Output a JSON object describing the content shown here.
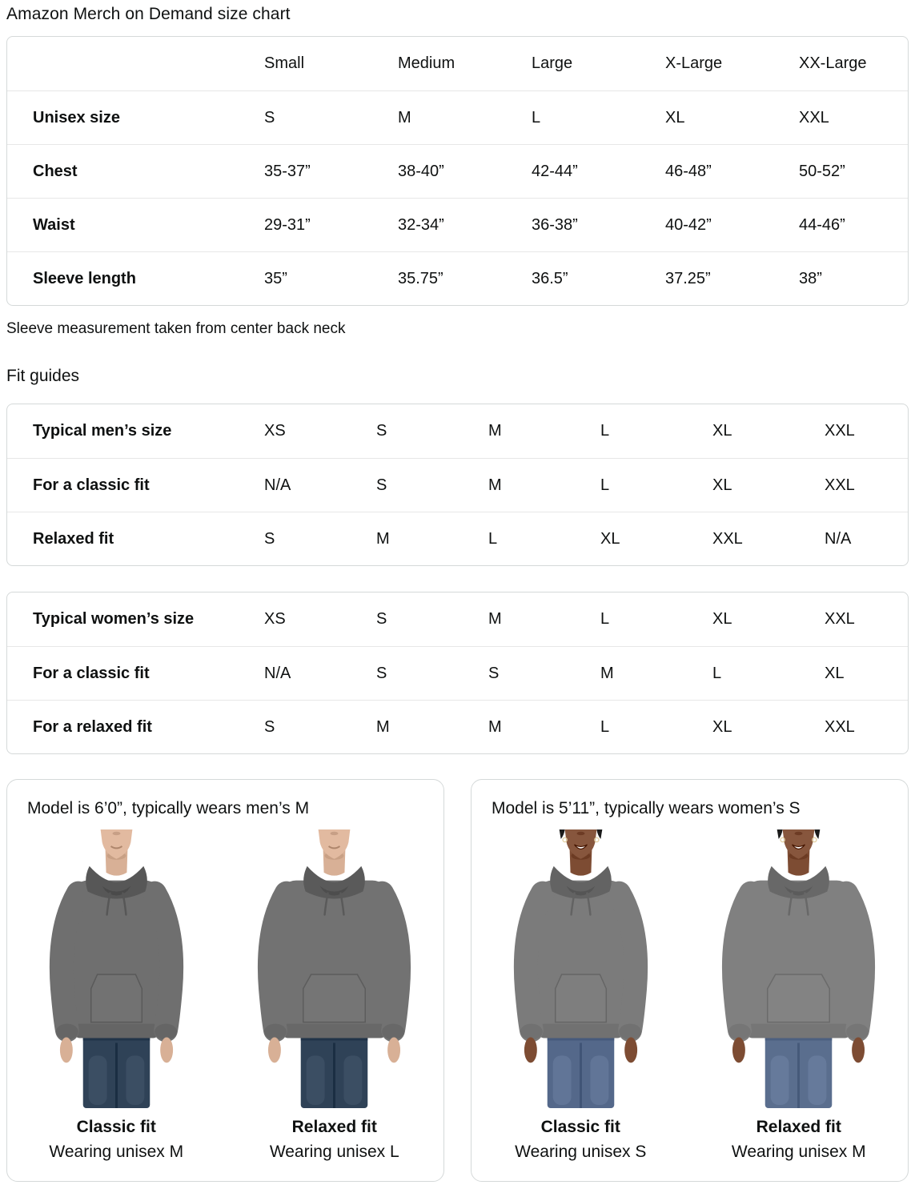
{
  "page_title": "Amazon Merch on Demand size chart",
  "ui_colors": {
    "text": "#0f1111",
    "table_border": "#d5d9d9",
    "row_divider": "#e7e7e7",
    "background": "#ffffff"
  },
  "size_chart": {
    "columns": [
      "Small",
      "Medium",
      "Large",
      "X-Large",
      "XX-Large"
    ],
    "rows": [
      {
        "label": "Unisex size",
        "values": [
          "S",
          "M",
          "L",
          "XL",
          "XXL"
        ]
      },
      {
        "label": "Chest",
        "values": [
          "35-37”",
          "38-40”",
          "42-44”",
          "46-48”",
          "50-52”"
        ]
      },
      {
        "label": "Waist",
        "values": [
          "29-31”",
          "32-34”",
          "36-38”",
          "40-42”",
          "44-46”"
        ]
      },
      {
        "label": "Sleeve length",
        "values": [
          "35”",
          "35.75”",
          "36.5”",
          "37.25”",
          "38”"
        ]
      }
    ]
  },
  "sleeve_note": "Sleeve measurement taken from center back neck",
  "fit_guides_heading": "Fit guides",
  "mens_fit_table": {
    "rows": [
      {
        "label": "Typical men’s size",
        "values": [
          "XS",
          "S",
          "M",
          "L",
          "XL",
          "XXL"
        ]
      },
      {
        "label": "For a classic fit",
        "values": [
          "N/A",
          "S",
          "M",
          "L",
          "XL",
          "XXL"
        ]
      },
      {
        "label": "Relaxed fit",
        "values": [
          "S",
          "M",
          "L",
          "XL",
          "XXL",
          "N/A"
        ]
      }
    ]
  },
  "womens_fit_table": {
    "rows": [
      {
        "label": "Typical women’s size",
        "values": [
          "XS",
          "S",
          "M",
          "L",
          "XL",
          "XXL"
        ]
      },
      {
        "label": "For a classic fit",
        "values": [
          "N/A",
          "S",
          "S",
          "M",
          "L",
          "XL"
        ]
      },
      {
        "label": "For a relaxed fit",
        "values": [
          "S",
          "M",
          "M",
          "L",
          "XL",
          "XXL"
        ]
      }
    ]
  },
  "model_cards": [
    {
      "heading": "Model is 6’0”, typically wears men’s M",
      "figures": [
        {
          "fit": "classic",
          "gender": "male",
          "fit_label": "Classic fit",
          "caption": "Wearing unisex M",
          "colors": {
            "skin": "#d8b096",
            "hoodie": "#6f6f6f",
            "jeans": "#2f4257"
          }
        },
        {
          "fit": "relaxed",
          "gender": "male",
          "fit_label": "Relaxed fit",
          "caption": "Wearing unisex L",
          "colors": {
            "skin": "#d8b096",
            "hoodie": "#727272",
            "jeans": "#2f4257"
          }
        }
      ]
    },
    {
      "heading": "Model is 5’11”, typically wears women’s S",
      "figures": [
        {
          "fit": "classic",
          "gender": "female",
          "fit_label": "Classic fit",
          "caption": "Wearing unisex S",
          "colors": {
            "skin": "#7d4c33",
            "hoodie": "#7b7b7b",
            "jeans": "#54688a"
          }
        },
        {
          "fit": "relaxed",
          "gender": "female",
          "fit_label": "Relaxed fit",
          "caption": "Wearing unisex M",
          "colors": {
            "skin": "#7d4c33",
            "hoodie": "#808080",
            "jeans": "#5a6e8e"
          }
        }
      ]
    }
  ]
}
